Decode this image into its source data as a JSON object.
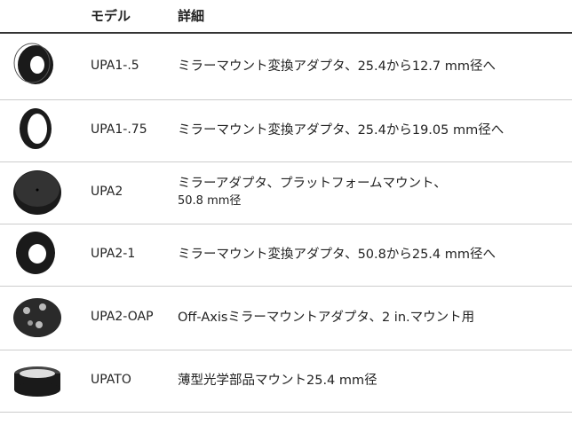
{
  "header": {
    "columns": [
      "モデル",
      "詳細"
    ]
  },
  "table": {
    "rows": [
      {
        "model": "UPA1-.5",
        "detail": [
          "ミラーマウント変換アダプタ、25.4から12.7 mm径へ"
        ]
      },
      {
        "model": "UPA1-.75",
        "detail": [
          "ミラーマウント変換アダプタ、25.4から19.05 mm径へ"
        ]
      },
      {
        "model": "UPA2",
        "detail": [
          "ミラーアダプタ、プラットフォームマウント、",
          "50.8 mm径"
        ]
      },
      {
        "model": "UPA2-1",
        "detail": [
          "ミラーマウント変換アダプタ、50.8から25.4 mm径へ"
        ]
      },
      {
        "model": "UPA2-OAP",
        "detail": [
          "Off-Axisミラーマウントアダプタ、2 in.マウント用"
        ]
      },
      {
        "model": "UPATO",
        "detail": [
          "薄型光学部品マウント25.4 mm径"
        ]
      }
    ]
  }
}
